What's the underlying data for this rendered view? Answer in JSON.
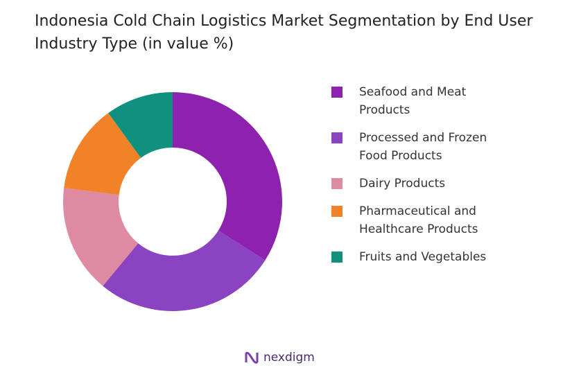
{
  "chart_data": {
    "type": "pie",
    "title": "Indonesia Cold Chain Logistics Market Segmentation by End User Industry Type (in value %)",
    "categories": [
      "Seafood and Meat Products",
      "Processed and Frozen Food Products",
      "Dairy Products",
      "Pharmaceutical and Healthcare Products",
      "Fruits and Vegetables"
    ],
    "values": [
      34,
      27,
      16,
      13,
      10
    ],
    "colors": [
      "#8c22ad",
      "#8a44c1",
      "#de8aa1",
      "#f28227",
      "#10907f"
    ],
    "donut": true
  },
  "brand": "nexdigm"
}
